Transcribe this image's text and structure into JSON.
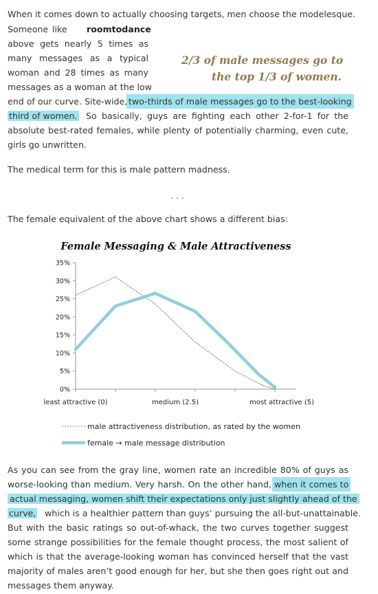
{
  "intro": {
    "line1": "When it comes down to actually choosing targets, men choose the modelesque.",
    "line2a": "Someone",
    "line2b": "like",
    "line2c": "roomtodance",
    "line3": "above gets nearly 5 times as",
    "line4": "many messages as a typical",
    "line5": "woman and 28 times as many",
    "line6": "messages as a woman at the low",
    "line7a": "end of our curve. Site-wide,",
    "line7b": "two-thirds of male messages go to the best-looking",
    "line8a": "third of women.",
    "line8b": "So basically, guys are fighting each other 2-for-1 for the",
    "line9": "absolute best-rated females, while plenty of potentially charming, even cute,",
    "line10": "girls go unwritten."
  },
  "pullquote": {
    "line1": "2/3 of male messages go to",
    "line2": "the top 1/3 of women."
  },
  "medical": "The medical term for this is male pattern madness.",
  "separator": ". . .",
  "female_intro": "The female equivalent of the above chart shows a different bias:",
  "chart_data": {
    "type": "line",
    "title": "Female Messaging & Male Attractiveness",
    "x": [
      0,
      0.5,
      1,
      1.5,
      2,
      2.5,
      3,
      3.5,
      4,
      4.5,
      5
    ],
    "x_tick_labels": [
      "least attractive (0)",
      "medium (2.5)",
      "most attractive (5)"
    ],
    "x_tick_positions": [
      0,
      2.5,
      5
    ],
    "y_tick_labels": [
      "0%",
      "5%",
      "10%",
      "15%",
      "20%",
      "25%",
      "30%",
      "35%"
    ],
    "ylim": [
      0,
      35
    ],
    "series": [
      {
        "name": "male attractiveness distribution, as rated by the women",
        "color": "#888888",
        "style": "dotted",
        "values": [
          26,
          31,
          23.5,
          13,
          5,
          1,
          0
        ],
        "x": [
          0,
          1,
          2,
          3,
          4,
          4.7,
          5
        ]
      },
      {
        "name": "female → male message distribution",
        "color": "#92cddc",
        "style": "thick",
        "values": [
          11,
          23,
          26.5,
          21.5,
          13,
          4,
          0.5
        ],
        "x": [
          0,
          1,
          2,
          3,
          3.8,
          4.6,
          5
        ]
      }
    ],
    "legend": "bottom",
    "grid": false
  },
  "outro": {
    "l1": "As you can see from the gray line, women rate an incredible 80% of guys as",
    "l2a": "worse-looking than medium. Very harsh. On the other hand,",
    "l2b": "when it comes to",
    "l3": "actual messaging, women shift their expectations only just slightly ahead of the",
    "l4a": "curve,",
    "l4b": "which is a healthier pattern than guys’ pursuing the all-but-unattainable.",
    "l5": "But with the basic ratings so out-of-whack, the two curves together suggest",
    "l6": "some strange possibilities for the female thought process, the most salient of",
    "l7": "which is that the average-looking woman has convinced herself that the vast",
    "l8": "majority of males aren’t good enough for her, but she then goes right out and",
    "l9": "messages them anyway."
  }
}
